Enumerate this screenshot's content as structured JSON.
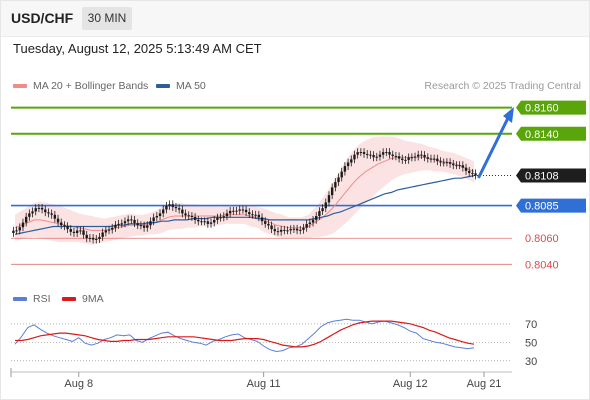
{
  "header": {
    "symbol": "USD/CHF",
    "timeframe": "30 MIN"
  },
  "timestamp": "Tuesday, August 12, 2025 5:13:49 AM CET",
  "copyright": "Research © 2025 Trading Central",
  "colors": {
    "bollinger": "#f28a8a",
    "band_fill": "#fbd9d9",
    "ma50": "#2e5d9e",
    "target": "#5aa50b",
    "pivot": "#2f6fd6",
    "support": "#d94c4c",
    "candle": "#1b1b1b",
    "rsi": "#5b7fd6",
    "rsi_ma": "#d81b1b"
  },
  "chart_data": [
    {
      "type": "candlestick",
      "ylim": [
        0.8028,
        0.8172
      ],
      "indicators": [
        {
          "name": "MA 20 + Bollinger Bands",
          "color": "#f28a8a"
        },
        {
          "name": "MA 50",
          "color": "#2e5d9e"
        }
      ],
      "levels": [
        {
          "value": 0.816,
          "label": "0.8160",
          "kind": "target"
        },
        {
          "value": 0.814,
          "label": "0.8140",
          "kind": "target"
        },
        {
          "value": 0.8108,
          "label": "0.8108",
          "kind": "last"
        },
        {
          "value": 0.8085,
          "label": "0.8085",
          "kind": "pivot"
        },
        {
          "value": 0.806,
          "label": "0.8060",
          "kind": "support"
        },
        {
          "value": 0.804,
          "label": "0.8040",
          "kind": "support"
        }
      ],
      "forecast_arrow": {
        "from": 0.8107,
        "to": 0.8159
      },
      "x_ticks": [
        "Aug 8",
        "Aug 11",
        "Aug 12",
        "Aug 21"
      ],
      "x_tick_index": [
        10,
        39,
        62,
        72
      ],
      "x_count": 73,
      "close": [
        0.8066,
        0.8072,
        0.8079,
        0.8083,
        0.8082,
        0.8079,
        0.8075,
        0.807,
        0.8067,
        0.8064,
        0.8066,
        0.806,
        0.8059,
        0.8061,
        0.8066,
        0.8068,
        0.8071,
        0.8073,
        0.8074,
        0.807,
        0.8068,
        0.8073,
        0.8077,
        0.8082,
        0.8086,
        0.8083,
        0.8079,
        0.8077,
        0.8074,
        0.8073,
        0.8071,
        0.8074,
        0.8076,
        0.8079,
        0.8081,
        0.8082,
        0.808,
        0.8078,
        0.8076,
        0.8071,
        0.8067,
        0.8065,
        0.8066,
        0.8067,
        0.8066,
        0.8068,
        0.8072,
        0.8077,
        0.8083,
        0.8093,
        0.8103,
        0.8111,
        0.8118,
        0.8124,
        0.8126,
        0.8124,
        0.8122,
        0.8124,
        0.8126,
        0.8123,
        0.8121,
        0.812,
        0.8122,
        0.8124,
        0.8122,
        0.8121,
        0.8119,
        0.8118,
        0.8117,
        0.8116,
        0.8114,
        0.811,
        0.8108
      ],
      "ma20": [
        0.8068,
        0.807,
        0.8072,
        0.8074,
        0.8074,
        0.8073,
        0.8072,
        0.8071,
        0.807,
        0.8069,
        0.8068,
        0.8067,
        0.8066,
        0.8066,
        0.8066,
        0.8067,
        0.8068,
        0.8069,
        0.807,
        0.807,
        0.807,
        0.8071,
        0.8072,
        0.8074,
        0.8076,
        0.8077,
        0.8077,
        0.8077,
        0.8077,
        0.8077,
        0.8077,
        0.8077,
        0.8077,
        0.8078,
        0.8078,
        0.8078,
        0.8078,
        0.8077,
        0.8076,
        0.8074,
        0.8072,
        0.807,
        0.8069,
        0.8068,
        0.8068,
        0.8068,
        0.8069,
        0.8072,
        0.8075,
        0.8079,
        0.8084,
        0.809,
        0.8096,
        0.8102,
        0.8107,
        0.8111,
        0.8114,
        0.8117,
        0.8119,
        0.8121,
        0.8122,
        0.8122,
        0.8122,
        0.8122,
        0.8122,
        0.8121,
        0.812,
        0.8119,
        0.8118,
        0.8117,
        0.8115,
        0.8113,
        0.8111
      ],
      "bb_width": [
        0.001,
        0.0011,
        0.0012,
        0.0013,
        0.0014,
        0.0014,
        0.0014,
        0.0014,
        0.0013,
        0.0012,
        0.0011,
        0.0011,
        0.0011,
        0.001,
        0.0009,
        0.0009,
        0.0009,
        0.0009,
        0.0009,
        0.0008,
        0.0008,
        0.0008,
        0.0009,
        0.001,
        0.001,
        0.001,
        0.001,
        0.0009,
        0.0009,
        0.0008,
        0.0008,
        0.0008,
        0.0007,
        0.0007,
        0.0007,
        0.0007,
        0.0007,
        0.0008,
        0.0008,
        0.0009,
        0.0009,
        0.0009,
        0.0009,
        0.0008,
        0.0008,
        0.0008,
        0.0009,
        0.0011,
        0.0014,
        0.0017,
        0.002,
        0.0022,
        0.0024,
        0.0025,
        0.0025,
        0.0024,
        0.0023,
        0.0021,
        0.0019,
        0.0017,
        0.0015,
        0.0013,
        0.0012,
        0.0011,
        0.001,
        0.0009,
        0.0009,
        0.0008,
        0.0008,
        0.0008,
        0.0008,
        0.0008,
        0.0008
      ],
      "ma50": [
        0.8063,
        0.8064,
        0.8065,
        0.8066,
        0.8067,
        0.8068,
        0.8069,
        0.8069,
        0.8069,
        0.8069,
        0.8069,
        0.8069,
        0.8069,
        0.8069,
        0.8069,
        0.8069,
        0.807,
        0.807,
        0.8071,
        0.8071,
        0.8071,
        0.8072,
        0.8072,
        0.8073,
        0.8073,
        0.8074,
        0.8074,
        0.8074,
        0.8075,
        0.8075,
        0.8075,
        0.8076,
        0.8076,
        0.8076,
        0.8076,
        0.8076,
        0.8076,
        0.8076,
        0.8075,
        0.8075,
        0.8074,
        0.8074,
        0.8074,
        0.8074,
        0.8074,
        0.8074,
        0.8074,
        0.8075,
        0.8076,
        0.8077,
        0.8079,
        0.808,
        0.8082,
        0.8084,
        0.8086,
        0.8088,
        0.809,
        0.8092,
        0.8094,
        0.8095,
        0.8097,
        0.8098,
        0.8099,
        0.81,
        0.8101,
        0.8102,
        0.8103,
        0.8104,
        0.8105,
        0.8106,
        0.8106,
        0.8107,
        0.8108
      ]
    },
    {
      "type": "line",
      "ylim": [
        20,
        85
      ],
      "ticks": [
        70,
        50,
        30
      ],
      "series": [
        {
          "name": "RSI",
          "color": "#5b7fd6",
          "values": [
            48,
            56,
            66,
            69,
            64,
            60,
            57,
            55,
            53,
            51,
            55,
            49,
            47,
            49,
            53,
            55,
            58,
            57,
            58,
            52,
            50,
            54,
            57,
            60,
            61,
            57,
            54,
            52,
            50,
            49,
            47,
            51,
            53,
            56,
            58,
            59,
            55,
            53,
            51,
            46,
            42,
            40,
            41,
            44,
            45,
            48,
            54,
            60,
            67,
            71,
            73,
            74,
            75,
            74,
            74,
            72,
            70,
            72,
            73,
            71,
            69,
            66,
            62,
            60,
            54,
            52,
            50,
            49,
            47,
            45,
            44,
            43,
            44
          ]
        },
        {
          "name": "9MA",
          "color": "#d81b1b",
          "values": [
            52,
            52,
            53,
            55,
            57,
            58,
            59,
            60,
            60,
            59,
            58,
            57,
            55,
            53,
            52,
            51,
            51,
            52,
            52,
            53,
            53,
            53,
            54,
            55,
            56,
            56,
            56,
            56,
            56,
            55,
            54,
            53,
            52,
            52,
            52,
            53,
            54,
            54,
            54,
            53,
            51,
            49,
            47,
            46,
            45,
            45,
            46,
            48,
            51,
            55,
            59,
            63,
            66,
            69,
            71,
            72,
            73,
            73,
            73,
            73,
            72,
            71,
            70,
            68,
            66,
            63,
            61,
            58,
            55,
            53,
            51,
            49,
            48
          ]
        }
      ]
    }
  ]
}
